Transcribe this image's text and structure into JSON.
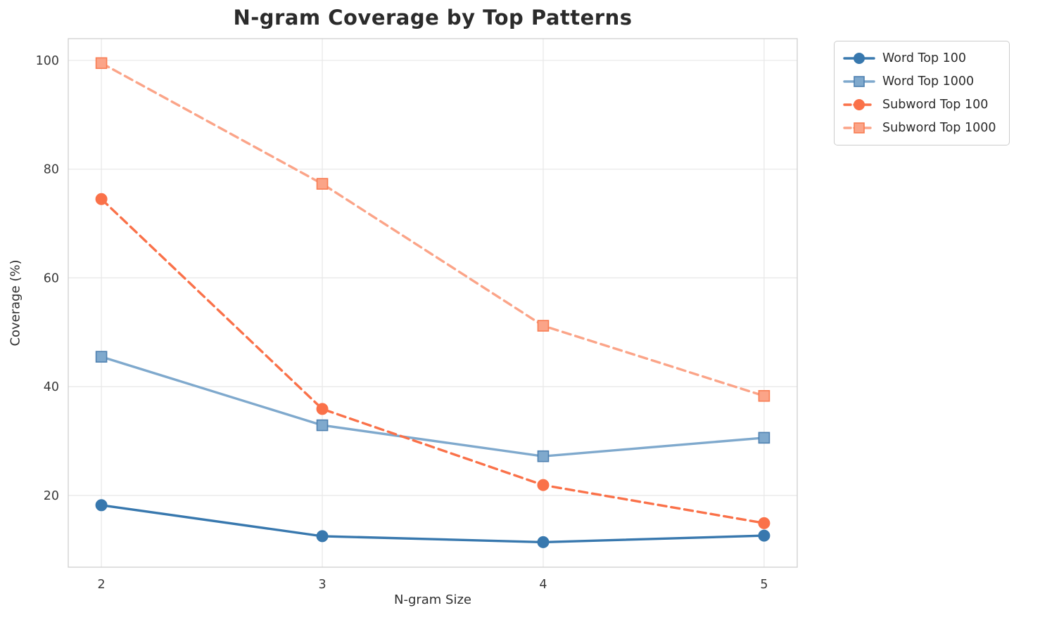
{
  "title": "N-gram Coverage by Top Patterns",
  "chart_data": {
    "type": "line",
    "title": "N-gram Coverage by Top Patterns",
    "xlabel": "N-gram Size",
    "ylabel": "Coverage (%)",
    "x": [
      2,
      3,
      4,
      5
    ],
    "xticks": [
      "2",
      "3",
      "4",
      "5"
    ],
    "yticks": [
      20,
      40,
      60,
      80,
      100
    ],
    "xlim": [
      1.85,
      5.15
    ],
    "ylim": [
      6.8,
      104.0
    ],
    "grid": true,
    "legend_position": "outside-top-right",
    "background_color": "#ffffff",
    "grid_color": "#e7e7e7",
    "series": [
      {
        "name": "Word Top 100",
        "values": [
          18.2,
          12.5,
          11.4,
          12.6
        ],
        "color": "#3878AE",
        "marker_edge": "#3878AE",
        "line_style": "solid",
        "marker": "circle"
      },
      {
        "name": "Word Top 1000",
        "values": [
          45.5,
          32.9,
          27.2,
          30.6
        ],
        "color": "#7FA9CD",
        "marker_edge": "#4E80B0",
        "line_style": "solid",
        "marker": "square"
      },
      {
        "name": "Subword Top 100",
        "values": [
          74.5,
          35.9,
          21.9,
          14.9
        ],
        "color": "#FA7149",
        "marker_edge": "#FA7149",
        "line_style": "dashed",
        "marker": "circle"
      },
      {
        "name": "Subword Top 1000",
        "values": [
          99.5,
          77.3,
          51.2,
          38.3
        ],
        "color": "#FBA488",
        "marker_edge": "#F87C52",
        "line_style": "dashed",
        "marker": "square"
      }
    ]
  }
}
